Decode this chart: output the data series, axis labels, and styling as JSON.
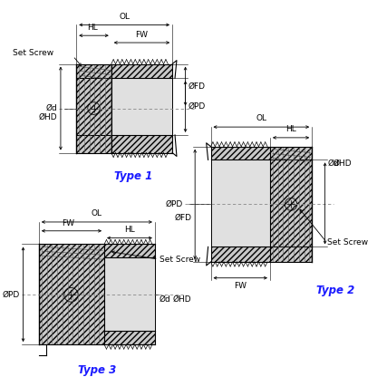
{
  "background_color": "#ffffff",
  "label_color": "#1a1aff",
  "dim_color": "#000000",
  "type1_label": "Type 1",
  "type2_label": "Type 2",
  "type3_label": "Type 3",
  "font_size_dim": 6.5,
  "font_size_type": 8.5,
  "hatch_color": "#555555",
  "fill_hatch": "#c8c8c8",
  "fill_light": "#e0e0e0",
  "fill_mid": "#d0d0d0"
}
